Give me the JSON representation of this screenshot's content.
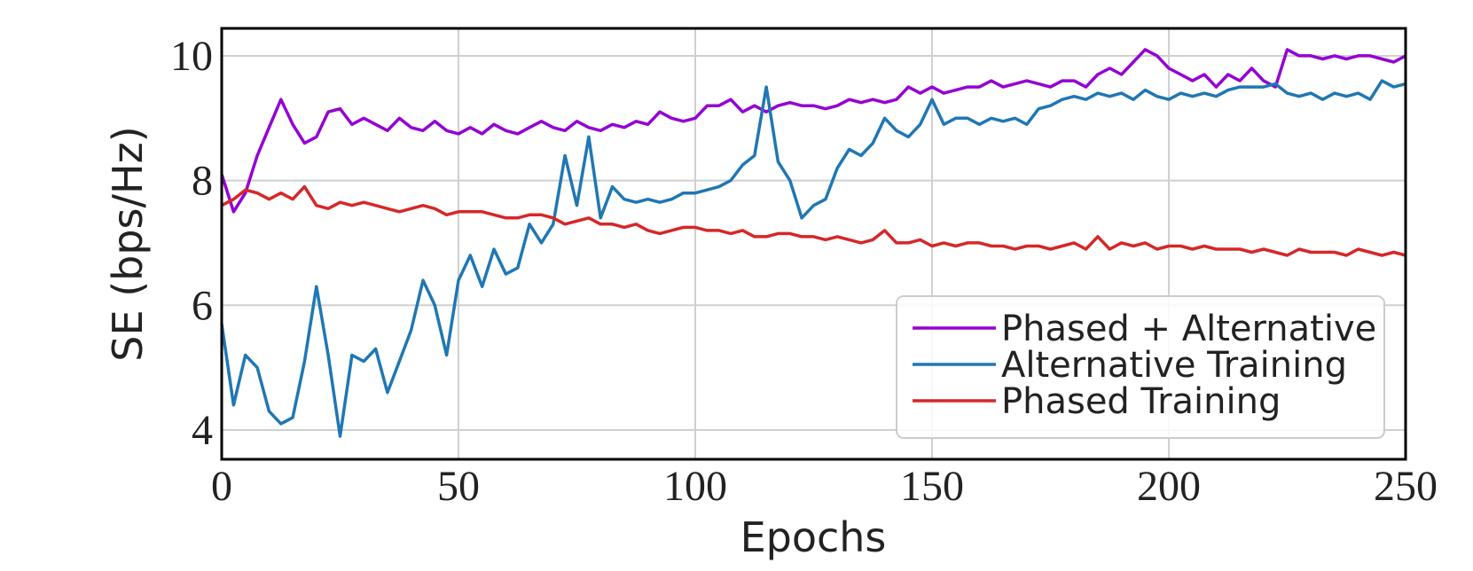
{
  "chart_data": {
    "type": "line",
    "xlabel": "Epochs",
    "ylabel": "SE (bps/Hz)",
    "x": [
      0,
      2.5,
      5,
      7.5,
      10,
      12.5,
      15,
      17.5,
      20,
      22.5,
      25,
      27.5,
      30,
      32.5,
      35,
      37.5,
      40,
      42.5,
      45,
      47.5,
      50,
      52.5,
      55,
      57.5,
      60,
      62.5,
      65,
      67.5,
      70,
      72.5,
      75,
      77.5,
      80,
      82.5,
      85,
      87.5,
      90,
      92.5,
      95,
      97.5,
      100,
      102.5,
      105,
      107.5,
      110,
      112.5,
      115,
      117.5,
      120,
      122.5,
      125,
      127.5,
      130,
      132.5,
      135,
      137.5,
      140,
      142.5,
      145,
      147.5,
      150,
      152.5,
      155,
      157.5,
      160,
      162.5,
      165,
      167.5,
      170,
      172.5,
      175,
      177.5,
      180,
      182.5,
      185,
      187.5,
      190,
      192.5,
      195,
      197.5,
      200,
      202.5,
      205,
      207.5,
      210,
      212.5,
      215,
      217.5,
      220,
      222.5,
      225,
      227.5,
      230,
      232.5,
      235,
      237.5,
      240,
      242.5,
      245,
      247.5,
      250
    ],
    "series": [
      {
        "name": "Phased + Alternative",
        "color": "#9400d3",
        "values": [
          8.1,
          7.5,
          7.8,
          8.4,
          8.85,
          9.3,
          8.9,
          8.6,
          8.7,
          9.1,
          9.15,
          8.9,
          9.0,
          8.9,
          8.8,
          9.0,
          8.85,
          8.8,
          8.95,
          8.8,
          8.75,
          8.85,
          8.75,
          8.9,
          8.8,
          8.75,
          8.85,
          8.95,
          8.85,
          8.8,
          8.95,
          8.85,
          8.8,
          8.9,
          8.85,
          8.95,
          8.9,
          9.1,
          9.0,
          8.95,
          9.0,
          9.2,
          9.2,
          9.3,
          9.1,
          9.2,
          9.1,
          9.2,
          9.25,
          9.2,
          9.2,
          9.15,
          9.2,
          9.3,
          9.25,
          9.3,
          9.25,
          9.3,
          9.5,
          9.4,
          9.5,
          9.4,
          9.45,
          9.5,
          9.5,
          9.6,
          9.5,
          9.55,
          9.6,
          9.55,
          9.5,
          9.6,
          9.6,
          9.5,
          9.7,
          9.8,
          9.7,
          9.9,
          10.1,
          10.0,
          9.8,
          9.7,
          9.6,
          9.7,
          9.5,
          9.7,
          9.6,
          9.8,
          9.6,
          9.5,
          10.1,
          10.0,
          10.0,
          9.95,
          10.0,
          9.95,
          10.0,
          10.0,
          9.95,
          9.9,
          10.0
        ]
      },
      {
        "name": "Alternative Training",
        "color": "#1f77b4",
        "values": [
          5.7,
          4.4,
          5.2,
          5.0,
          4.3,
          4.1,
          4.2,
          5.1,
          6.3,
          5.2,
          3.9,
          5.2,
          5.1,
          5.3,
          4.6,
          5.1,
          5.6,
          6.4,
          6.0,
          5.2,
          6.4,
          6.8,
          6.3,
          6.9,
          6.5,
          6.6,
          7.3,
          7.0,
          7.3,
          8.4,
          7.6,
          8.7,
          7.4,
          7.9,
          7.7,
          7.65,
          7.7,
          7.65,
          7.7,
          7.8,
          7.8,
          7.85,
          7.9,
          8.0,
          8.25,
          8.4,
          9.5,
          8.3,
          8.0,
          7.4,
          7.6,
          7.7,
          8.2,
          8.5,
          8.4,
          8.6,
          9.0,
          8.8,
          8.7,
          8.9,
          9.3,
          8.9,
          9.0,
          9.0,
          8.9,
          9.0,
          8.95,
          9.0,
          8.9,
          9.15,
          9.2,
          9.3,
          9.35,
          9.3,
          9.4,
          9.35,
          9.4,
          9.3,
          9.45,
          9.35,
          9.3,
          9.4,
          9.35,
          9.4,
          9.35,
          9.45,
          9.5,
          9.5,
          9.5,
          9.55,
          9.4,
          9.35,
          9.4,
          9.3,
          9.4,
          9.35,
          9.4,
          9.3,
          9.6,
          9.5,
          9.55
        ]
      },
      {
        "name": "Phased Training",
        "color": "#d62728",
        "values": [
          7.6,
          7.7,
          7.85,
          7.8,
          7.7,
          7.8,
          7.7,
          7.9,
          7.6,
          7.55,
          7.65,
          7.6,
          7.65,
          7.6,
          7.55,
          7.5,
          7.55,
          7.6,
          7.55,
          7.45,
          7.5,
          7.5,
          7.5,
          7.45,
          7.4,
          7.4,
          7.45,
          7.45,
          7.4,
          7.3,
          7.35,
          7.4,
          7.3,
          7.3,
          7.25,
          7.3,
          7.2,
          7.15,
          7.2,
          7.25,
          7.25,
          7.2,
          7.2,
          7.15,
          7.2,
          7.1,
          7.1,
          7.15,
          7.15,
          7.1,
          7.1,
          7.05,
          7.1,
          7.05,
          7.0,
          7.05,
          7.2,
          7.0,
          7.0,
          7.05,
          6.95,
          7.0,
          6.95,
          7.0,
          7.0,
          6.95,
          6.95,
          6.9,
          6.95,
          6.95,
          6.9,
          6.95,
          7.0,
          6.9,
          7.1,
          6.9,
          7.0,
          6.95,
          7.0,
          6.9,
          6.95,
          6.95,
          6.9,
          6.95,
          6.9,
          6.9,
          6.9,
          6.85,
          6.9,
          6.85,
          6.8,
          6.9,
          6.85,
          6.85,
          6.85,
          6.8,
          6.9,
          6.85,
          6.8,
          6.85,
          6.8
        ]
      }
    ],
    "xlim": [
      0,
      250
    ],
    "xticks": [
      0,
      50,
      100,
      150,
      200,
      250
    ],
    "ylim": [
      3.53,
      10.44
    ],
    "yticks": [
      4,
      6,
      8,
      10
    ],
    "grid": true,
    "legend": "lower right"
  }
}
